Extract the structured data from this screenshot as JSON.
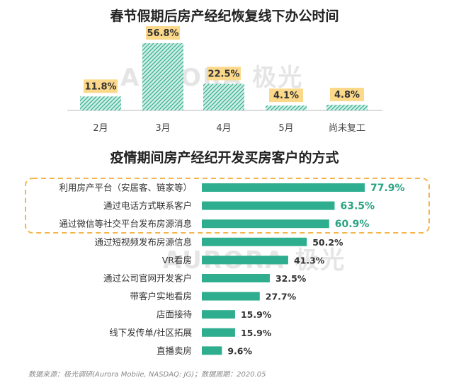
{
  "watermark": "AURORA 极光",
  "footnote": "数据来源：极光调研(Aurora Mobile, NASDAQ: JG)；数据周期：2020.05",
  "colors": {
    "bar_fill": "#2fae8f",
    "bar_hatch_bg": "#cfeee5",
    "label_bg": "#fcd98a",
    "highlight_border": "#f5b54a",
    "highlight_text": "#2aa382"
  },
  "chart_data": [
    {
      "type": "bar",
      "title": "春节假期后房产经纪恢复线下办公时间",
      "categories": [
        "2月",
        "3月",
        "4月",
        "5月",
        "尚未复工"
      ],
      "values": [
        11.8,
        56.8,
        22.5,
        4.1,
        4.8
      ],
      "value_labels": [
        "11.8%",
        "56.8%",
        "22.5%",
        "4.1%",
        "4.8%"
      ],
      "ylim": [
        0,
        60
      ]
    },
    {
      "type": "bar",
      "orientation": "horizontal",
      "title": "疫情期间房产经纪开发买房客户的方式",
      "categories": [
        "利用房产平台（安居客、链家等）",
        "通过电话方式联系客户",
        "通过微信等社交平台发布房源消息",
        "通过短视频发布房源信息",
        "VR看房",
        "通过公司官网开发客户",
        "带客户实地看房",
        "店面接待",
        "线下发传单/社区拓展",
        "直播卖房"
      ],
      "values": [
        77.9,
        63.5,
        60.9,
        50.2,
        41.3,
        32.5,
        27.7,
        15.9,
        15.9,
        9.6
      ],
      "value_labels": [
        "77.9%",
        "63.5%",
        "60.9%",
        "50.2%",
        "41.3%",
        "32.5%",
        "27.7%",
        "15.9%",
        "15.9%",
        "9.6%"
      ],
      "highlighted": [
        0,
        1,
        2
      ],
      "xlim": [
        0,
        100
      ]
    }
  ]
}
